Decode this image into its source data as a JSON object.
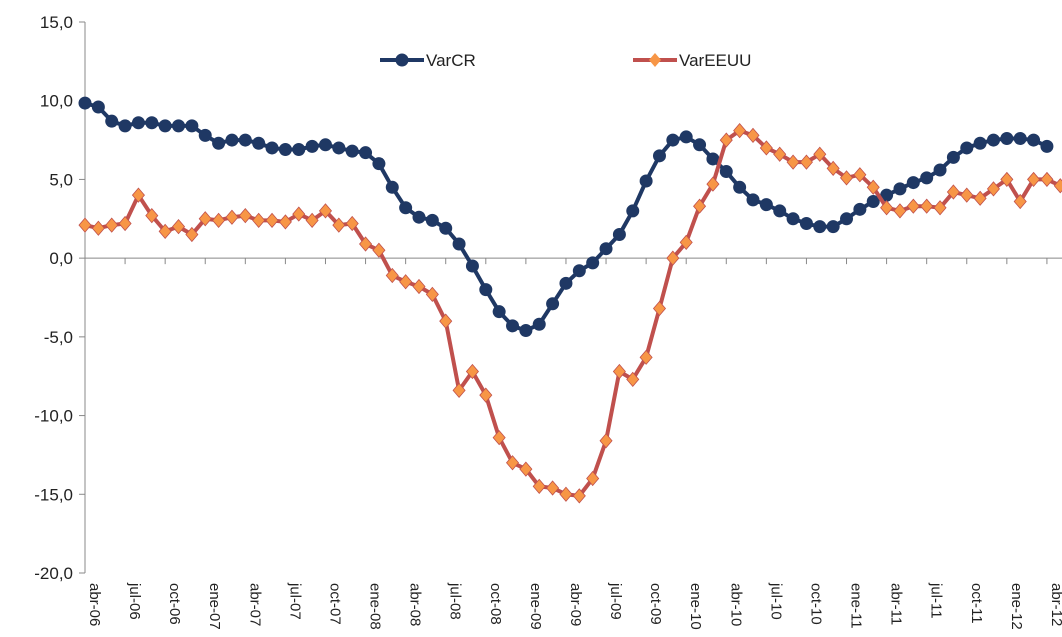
{
  "chart_data": {
    "type": "line",
    "categories": [
      "abr-06",
      null,
      null,
      "jul-06",
      null,
      null,
      "oct-06",
      null,
      null,
      "ene-07",
      null,
      null,
      "abr-07",
      null,
      null,
      "jul-07",
      null,
      null,
      "oct-07",
      null,
      null,
      "ene-08",
      null,
      null,
      "abr-08",
      null,
      null,
      "jul-08",
      null,
      null,
      "oct-08",
      null,
      null,
      "ene-09",
      null,
      null,
      "abr-09",
      null,
      null,
      "jul-09",
      null,
      null,
      "oct-09",
      null,
      null,
      "ene-10",
      null,
      null,
      "abr-10",
      null,
      null,
      "jul-10",
      null,
      null,
      "oct-10",
      null,
      null,
      "ene-11",
      null,
      null,
      "abr-11",
      null,
      null,
      "jul-11",
      null,
      null,
      "oct-11",
      null,
      null,
      "ene-12",
      null,
      null,
      "abr-12",
      null
    ],
    "series": [
      {
        "name": "VarCR",
        "color": "#1f3864",
        "marker": "circle",
        "marker_color": "#1f3864",
        "values": [
          9.85,
          9.6,
          8.7,
          8.4,
          8.6,
          8.6,
          8.4,
          8.4,
          8.4,
          7.8,
          7.3,
          7.5,
          7.5,
          7.3,
          7.0,
          6.9,
          6.9,
          7.1,
          7.2,
          7.0,
          6.8,
          6.7,
          6.0,
          4.5,
          3.2,
          2.6,
          2.4,
          1.9,
          0.9,
          -0.5,
          -2.0,
          -3.4,
          -4.3,
          -4.6,
          -4.2,
          -2.9,
          -1.6,
          -0.8,
          -0.3,
          0.6,
          1.5,
          3.0,
          4.9,
          6.5,
          7.5,
          7.7,
          7.2,
          6.3,
          5.5,
          4.5,
          3.7,
          3.4,
          3.0,
          2.5,
          2.2,
          2.0,
          2.0,
          2.5,
          3.1,
          3.6,
          4.0,
          4.4,
          4.8,
          5.1,
          5.6,
          6.4,
          7.0,
          7.3,
          7.5,
          7.6,
          7.6,
          7.5,
          7.1,
          null
        ]
      },
      {
        "name": "VarEEUU",
        "color": "#c0504d",
        "marker": "diamond",
        "marker_color": "#f79646",
        "values": [
          2.1,
          1.9,
          2.1,
          2.2,
          4.0,
          2.7,
          1.7,
          2.0,
          1.5,
          2.5,
          2.4,
          2.6,
          2.7,
          2.4,
          2.4,
          2.3,
          2.8,
          2.4,
          3.0,
          2.1,
          2.2,
          0.9,
          0.5,
          -1.1,
          -1.5,
          -1.8,
          -2.3,
          -4.0,
          -8.4,
          -7.2,
          -8.7,
          -11.4,
          -13.0,
          -13.4,
          -14.5,
          -14.6,
          -15.0,
          -15.1,
          -14.0,
          -11.6,
          -7.2,
          -7.7,
          -6.3,
          -3.2,
          0.0,
          1.0,
          3.3,
          4.7,
          7.5,
          8.1,
          7.8,
          7.0,
          6.6,
          6.1,
          6.1,
          6.6,
          5.7,
          5.1,
          5.3,
          4.5,
          3.2,
          3.0,
          3.3,
          3.3,
          3.2,
          4.2,
          4.0,
          3.8,
          4.4,
          5.0,
          3.6,
          5.0,
          5.0,
          4.6
        ]
      }
    ],
    "ylim": [
      -20,
      15
    ],
    "yticks": [
      {
        "value": -20,
        "label": "-20,0"
      },
      {
        "value": -15,
        "label": "-15,0"
      },
      {
        "value": -10,
        "label": "-10,0"
      },
      {
        "value": -5,
        "label": "-5,0"
      },
      {
        "value": 0,
        "label": "0,0"
      },
      {
        "value": 5,
        "label": "5,0"
      },
      {
        "value": 10,
        "label": "10,0"
      },
      {
        "value": 15,
        "label": "15,0"
      }
    ],
    "grid": false,
    "legend": "top"
  }
}
